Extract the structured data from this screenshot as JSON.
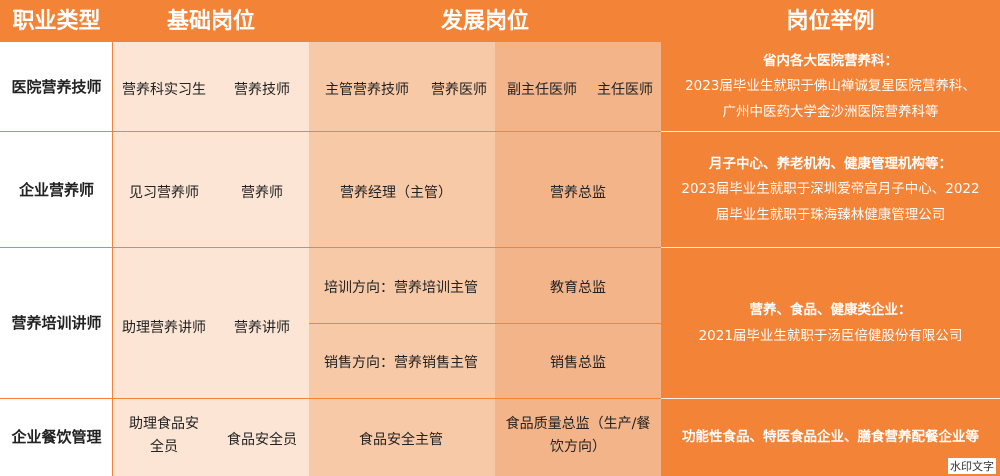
{
  "headers": {
    "career_type": "职业类型",
    "basic": "基础岗位",
    "development": "发展岗位",
    "examples": "岗位举例"
  },
  "rows": [
    {
      "type": "医院营养技师",
      "basic": [
        "营养科实习生",
        "营养技师"
      ],
      "development": [
        "主管营养技师",
        "营养医师",
        "副主任医师",
        "主任医师"
      ],
      "example": {
        "head": "省内各大医院营养科：",
        "lines": [
          "2023届毕业生就职于佛山禅诚复星医院营养科、",
          "广州中医药大学金沙洲医院营养科等"
        ]
      }
    },
    {
      "type": "企业营养师",
      "basic": [
        "见习营养师",
        "营养师"
      ],
      "development": [
        "营养经理（主管）",
        "营养总监"
      ],
      "example": {
        "head": "月子中心、养老机构、健康管理机构等：",
        "lines": [
          "2023届毕业生就职于深圳爱帝宫月子中心、2022",
          "届毕业生就职于珠海臻林健康管理公司"
        ]
      }
    },
    {
      "type": "营养培训讲师",
      "basic": [
        "助理营养讲师",
        "营养讲师"
      ],
      "development": [
        "培训方向：营养培训主管",
        "教育总监",
        "销售方向：营养销售主管",
        "销售总监"
      ],
      "example": {
        "head": "营养、食品、健康类企业：",
        "lines": [
          "2021届毕业生就职于汤臣倍健股份有限公司"
        ]
      }
    },
    {
      "type": "企业餐饮管理",
      "basic": [
        "助理食品安全员",
        "食品安全员"
      ],
      "development": [
        "食品安全主管",
        "食品质量总监（生产/餐饮方向）"
      ],
      "example": {
        "head": "功能性食品、特医食品企业、膳食营养配餐企业等",
        "lines": []
      }
    }
  ],
  "watermark": "水印文字",
  "colors": {
    "accent": "#F28337",
    "basic_bg": "#FCE5D5",
    "dev_light": "#F8C9A6",
    "dev_dark": "#F4B489"
  }
}
